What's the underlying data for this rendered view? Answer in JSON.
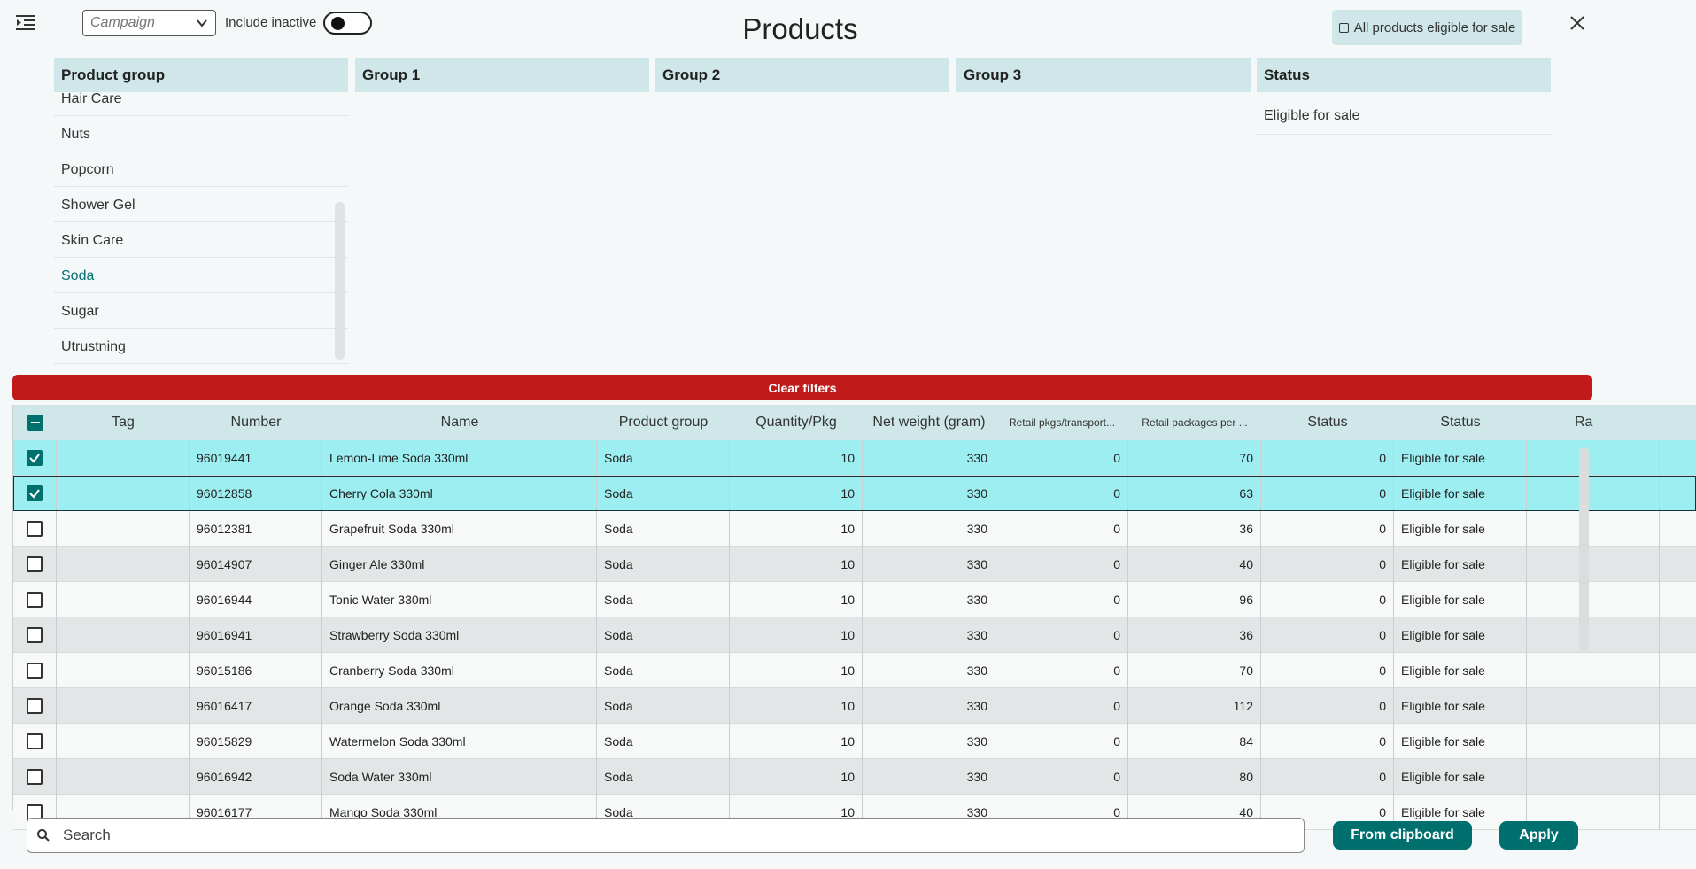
{
  "header": {
    "menu_icon": "menu-indent-icon",
    "campaign_placeholder": "Campaign",
    "include_inactive_label": "Include inactive",
    "include_inactive_on": false,
    "title": "Products",
    "eligible_button_label": "All products eligible for sale",
    "close_icon": "close-icon"
  },
  "filters": {
    "product_group": {
      "header": "Product group",
      "items": [
        "Hair Care",
        "Nuts",
        "Popcorn",
        "Shower Gel",
        "Skin Care",
        "Soda",
        "Sugar",
        "Utrustning"
      ],
      "selected": "Soda"
    },
    "group1": {
      "header": "Group 1"
    },
    "group2": {
      "header": "Group 2"
    },
    "group3": {
      "header": "Group 3"
    },
    "status": {
      "header": "Status",
      "items": [
        "Eligible for sale"
      ]
    }
  },
  "clear_filters_label": "Clear filters",
  "table": {
    "columns": [
      "Tag",
      "Number",
      "Name",
      "Product group",
      "Quantity/Pkg",
      "Net weight (gram)",
      "Retail pkgs/transport...",
      "Retail packages per ...",
      "Status",
      "Status",
      "Ra"
    ],
    "rows": [
      {
        "checked": true,
        "tag": "",
        "number": "96019441",
        "name": "Lemon-Lime Soda 330ml",
        "group": "Soda",
        "qty": "10",
        "weight": "330",
        "retail_transport": "0",
        "retail_per": "70",
        "status_num": "0",
        "status": "Eligible for sale"
      },
      {
        "checked": true,
        "tag": "",
        "number": "96012858",
        "name": "Cherry Cola 330ml",
        "group": "Soda",
        "qty": "10",
        "weight": "330",
        "retail_transport": "0",
        "retail_per": "63",
        "status_num": "0",
        "status": "Eligible for sale"
      },
      {
        "checked": false,
        "tag": "",
        "number": "96012381",
        "name": "Grapefruit Soda 330ml",
        "group": "Soda",
        "qty": "10",
        "weight": "330",
        "retail_transport": "0",
        "retail_per": "36",
        "status_num": "0",
        "status": "Eligible for sale"
      },
      {
        "checked": false,
        "tag": "",
        "number": "96014907",
        "name": "Ginger Ale 330ml",
        "group": "Soda",
        "qty": "10",
        "weight": "330",
        "retail_transport": "0",
        "retail_per": "40",
        "status_num": "0",
        "status": "Eligible for sale"
      },
      {
        "checked": false,
        "tag": "",
        "number": "96016944",
        "name": "Tonic Water 330ml",
        "group": "Soda",
        "qty": "10",
        "weight": "330",
        "retail_transport": "0",
        "retail_per": "96",
        "status_num": "0",
        "status": "Eligible for sale"
      },
      {
        "checked": false,
        "tag": "",
        "number": "96016941",
        "name": "Strawberry Soda 330ml",
        "group": "Soda",
        "qty": "10",
        "weight": "330",
        "retail_transport": "0",
        "retail_per": "36",
        "status_num": "0",
        "status": "Eligible for sale"
      },
      {
        "checked": false,
        "tag": "",
        "number": "96015186",
        "name": "Cranberry Soda 330ml",
        "group": "Soda",
        "qty": "10",
        "weight": "330",
        "retail_transport": "0",
        "retail_per": "70",
        "status_num": "0",
        "status": "Eligible for sale"
      },
      {
        "checked": false,
        "tag": "",
        "number": "96016417",
        "name": "Orange Soda 330ml",
        "group": "Soda",
        "qty": "10",
        "weight": "330",
        "retail_transport": "0",
        "retail_per": "112",
        "status_num": "0",
        "status": "Eligible for sale"
      },
      {
        "checked": false,
        "tag": "",
        "number": "96015829",
        "name": "Watermelon Soda 330ml",
        "group": "Soda",
        "qty": "10",
        "weight": "330",
        "retail_transport": "0",
        "retail_per": "84",
        "status_num": "0",
        "status": "Eligible for sale"
      },
      {
        "checked": false,
        "tag": "",
        "number": "96016942",
        "name": "Soda Water 330ml",
        "group": "Soda",
        "qty": "10",
        "weight": "330",
        "retail_transport": "0",
        "retail_per": "80",
        "status_num": "0",
        "status": "Eligible for sale"
      },
      {
        "checked": false,
        "tag": "",
        "number": "96016177",
        "name": "Mango Soda 330ml",
        "group": "Soda",
        "qty": "10",
        "weight": "330",
        "retail_transport": "0",
        "retail_per": "40",
        "status_num": "0",
        "status": "Eligible for sale"
      }
    ]
  },
  "footer": {
    "search_placeholder": "Search",
    "from_clipboard_label": "From clipboard",
    "apply_label": "Apply"
  },
  "colors": {
    "accent": "#00706f",
    "header_bg": "#cfe7e8",
    "selected_row": "#9ceef0",
    "clear_red": "#c11a1a"
  }
}
